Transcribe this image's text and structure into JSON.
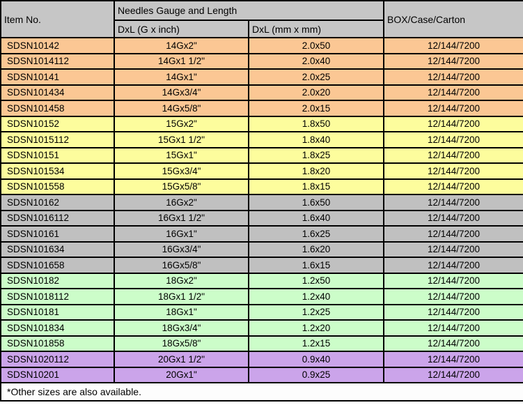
{
  "table": {
    "headers": {
      "item_no": "Item No.",
      "group": "Needles Gauge and Length",
      "sub_inch": "DxL (G x inch)",
      "sub_mm": "DxL (mm x mm)",
      "box": "BOX/Case/Carton"
    },
    "footnote": "*Other sizes are also available.",
    "groups": [
      {
        "name": "14G",
        "color": "#fbc794",
        "rows": [
          {
            "item_no": "SDSN10142",
            "g_inch": "14Gx2\"",
            "mm": "2.0x50",
            "box": "12/144/7200"
          },
          {
            "item_no": "SDSN1014112",
            "g_inch": "14Gx1 1/2\"",
            "mm": "2.0x40",
            "box": "12/144/7200"
          },
          {
            "item_no": "SDSN10141",
            "g_inch": "14Gx1\"",
            "mm": "2.0x25",
            "box": "12/144/7200"
          },
          {
            "item_no": "SDSN101434",
            "g_inch": "14Gx3/4\"",
            "mm": "2.0x20",
            "box": "12/144/7200"
          },
          {
            "item_no": "SDSN101458",
            "g_inch": "14Gx5/8\"",
            "mm": "2.0x15",
            "box": "12/144/7200"
          }
        ]
      },
      {
        "name": "15G",
        "color": "#fdfd9d",
        "rows": [
          {
            "item_no": "SDSN10152",
            "g_inch": "15Gx2\"",
            "mm": "1.8x50",
            "box": "12/144/7200"
          },
          {
            "item_no": "SDSN1015112",
            "g_inch": "15Gx1 1/2\"",
            "mm": "1.8x40",
            "box": "12/144/7200"
          },
          {
            "item_no": "SDSN10151",
            "g_inch": "15Gx1\"",
            "mm": "1.8x25",
            "box": "12/144/7200"
          },
          {
            "item_no": "SDSN101534",
            "g_inch": "15Gx3/4\"",
            "mm": "1.8x20",
            "box": "12/144/7200"
          },
          {
            "item_no": "SDSN101558",
            "g_inch": "15Gx5/8\"",
            "mm": "1.8x15",
            "box": "12/144/7200"
          }
        ]
      },
      {
        "name": "16G",
        "color": "#c0c0c0",
        "rows": [
          {
            "item_no": "SDSN10162",
            "g_inch": "16Gx2\"",
            "mm": "1.6x50",
            "box": "12/144/7200"
          },
          {
            "item_no": "SDSN1016112",
            "g_inch": "16Gx1 1/2\"",
            "mm": "1.6x40",
            "box": "12/144/7200"
          },
          {
            "item_no": "SDSN10161",
            "g_inch": "16Gx1\"",
            "mm": "1.6x25",
            "box": "12/144/7200"
          },
          {
            "item_no": "SDSN101634",
            "g_inch": "16Gx3/4\"",
            "mm": "1.6x20",
            "box": "12/144/7200"
          },
          {
            "item_no": "SDSN101658",
            "g_inch": "16Gx5/8\"",
            "mm": "1.6x15",
            "box": "12/144/7200"
          }
        ]
      },
      {
        "name": "18G",
        "color": "#ccfdc9",
        "rows": [
          {
            "item_no": "SDSN10182",
            "g_inch": "18Gx2\"",
            "mm": "1.2x50",
            "box": "12/144/7200"
          },
          {
            "item_no": "SDSN1018112",
            "g_inch": "18Gx1 1/2\"",
            "mm": "1.2x40",
            "box": "12/144/7200"
          },
          {
            "item_no": "SDSN10181",
            "g_inch": "18Gx1\"",
            "mm": "1.2x25",
            "box": "12/144/7200"
          },
          {
            "item_no": "SDSN101834",
            "g_inch": "18Gx3/4\"",
            "mm": "1.2x20",
            "box": "12/144/7200"
          },
          {
            "item_no": "SDSN101858",
            "g_inch": "18Gx5/8\"",
            "mm": "1.2x15",
            "box": "12/144/7200"
          }
        ]
      },
      {
        "name": "20G",
        "color": "#cba4ea",
        "rows": [
          {
            "item_no": "SDSN1020112",
            "g_inch": "20Gx1 1/2\"",
            "mm": "0.9x40",
            "box": "12/144/7200"
          },
          {
            "item_no": "SDSN10201",
            "g_inch": "20Gx1\"",
            "mm": "0.9x25",
            "box": "12/144/7200"
          }
        ]
      }
    ],
    "colors": {
      "header_bg": "#c6c6c6",
      "border": "#000000",
      "footer_bg": "#fdfdfd"
    }
  }
}
